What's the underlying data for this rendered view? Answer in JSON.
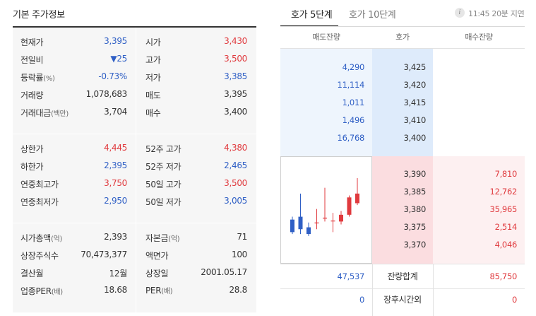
{
  "left": {
    "title": "기본 주가정보",
    "block1": [
      {
        "l1": "현재가",
        "v1": "3,395",
        "c1": "blue",
        "l2": "시가",
        "v2": "3,430",
        "c2": "red"
      },
      {
        "l1": "전일비",
        "v1": "▼25",
        "c1": "blue",
        "l2": "고가",
        "v2": "3,500",
        "c2": "red"
      },
      {
        "l1": "등락률",
        "l1s": "(%)",
        "v1": "-0.73%",
        "c1": "blue",
        "l2": "저가",
        "v2": "3,385",
        "c2": "blue"
      },
      {
        "l1": "거래량",
        "v1": "1,078,683",
        "c1": "dark",
        "l2": "매도",
        "v2": "3,395",
        "c2": "dark"
      },
      {
        "l1": "거래대금",
        "l1s": "(백만)",
        "v1": "3,704",
        "c1": "dark",
        "l2": "매수",
        "v2": "3,400",
        "c2": "dark"
      }
    ],
    "block2": [
      {
        "l1": "상한가",
        "v1": "4,445",
        "c1": "red",
        "l2": "52주 고가",
        "v2": "4,380",
        "c2": "red"
      },
      {
        "l1": "하한가",
        "v1": "2,395",
        "c1": "blue",
        "l2": "52주 저가",
        "v2": "2,465",
        "c2": "blue"
      },
      {
        "l1": "연중최고가",
        "v1": "3,750",
        "c1": "red",
        "l2": "50일 고가",
        "v2": "3,500",
        "c2": "red"
      },
      {
        "l1": "연중최저가",
        "v1": "2,950",
        "c1": "blue",
        "l2": "50일 저가",
        "v2": "3,005",
        "c2": "blue"
      }
    ],
    "block3": [
      {
        "l1": "시가총액",
        "l1s": "(억)",
        "v1": "2,393",
        "c1": "dark",
        "l2": "자본금",
        "l2s": "(억)",
        "v2": "71",
        "c2": "dark"
      },
      {
        "l1": "상장주식수",
        "v1": "70,473,377",
        "c1": "dark",
        "l2": "액면가",
        "v2": "100",
        "c2": "dark"
      },
      {
        "l1": "결산월",
        "v1": "12월",
        "c1": "dark",
        "l2": "상장일",
        "v2": "2001.05.17",
        "c2": "dark"
      },
      {
        "l1": "업종PER",
        "l1s": "(배)",
        "v1": "18.68",
        "c1": "dark",
        "l2": "PER",
        "l2s": "(배)",
        "v2": "28.8",
        "c2": "dark"
      }
    ]
  },
  "right": {
    "tabs": [
      "호가 5단계",
      "호가 10단계"
    ],
    "info_icon": "info-icon",
    "time_note": "11:45 20분 지연",
    "headers": [
      "매도잔량",
      "호가",
      "매수잔량"
    ],
    "asks": [
      {
        "qty": "4,290",
        "price": "3,425"
      },
      {
        "qty": "11,114",
        "price": "3,420"
      },
      {
        "qty": "1,011",
        "price": "3,415"
      },
      {
        "qty": "1,496",
        "price": "3,410"
      },
      {
        "qty": "16,768",
        "price": "3,400"
      }
    ],
    "bids": [
      {
        "price": "3,390",
        "qty": "7,810"
      },
      {
        "price": "3,385",
        "qty": "12,762"
      },
      {
        "price": "3,380",
        "qty": "35,965"
      },
      {
        "price": "3,375",
        "qty": "2,514"
      },
      {
        "price": "3,370",
        "qty": "4,046"
      }
    ],
    "total": {
      "ask": "47,537",
      "label": "잔량합계",
      "bid": "85,750"
    },
    "after_hours": {
      "ask": "0",
      "label": "장후시간외",
      "bid": "0"
    },
    "colors": {
      "up": "#e03a3e",
      "down": "#2f5fc5"
    },
    "mini_chart": {
      "type": "candlestick",
      "candles": [
        {
          "o": 3365,
          "c": 3352,
          "h": 3368,
          "l": 3350
        },
        {
          "o": 3368,
          "c": 3355,
          "h": 3392,
          "l": 3350
        },
        {
          "o": 3357,
          "c": 3350,
          "h": 3362,
          "l": 3348
        },
        {
          "o": 3362,
          "c": 3362,
          "h": 3376,
          "l": 3355
        },
        {
          "o": 3367,
          "c": 3367,
          "h": 3398,
          "l": 3363
        },
        {
          "o": 3364,
          "c": 3364,
          "h": 3372,
          "l": 3352
        },
        {
          "o": 3363,
          "c": 3370,
          "h": 3374,
          "l": 3360
        },
        {
          "o": 3370,
          "c": 3388,
          "h": 3390,
          "l": 3368
        },
        {
          "o": 3382,
          "c": 3392,
          "h": 3408,
          "l": 3380
        }
      ],
      "ylim": [
        3320,
        3430
      ]
    }
  }
}
